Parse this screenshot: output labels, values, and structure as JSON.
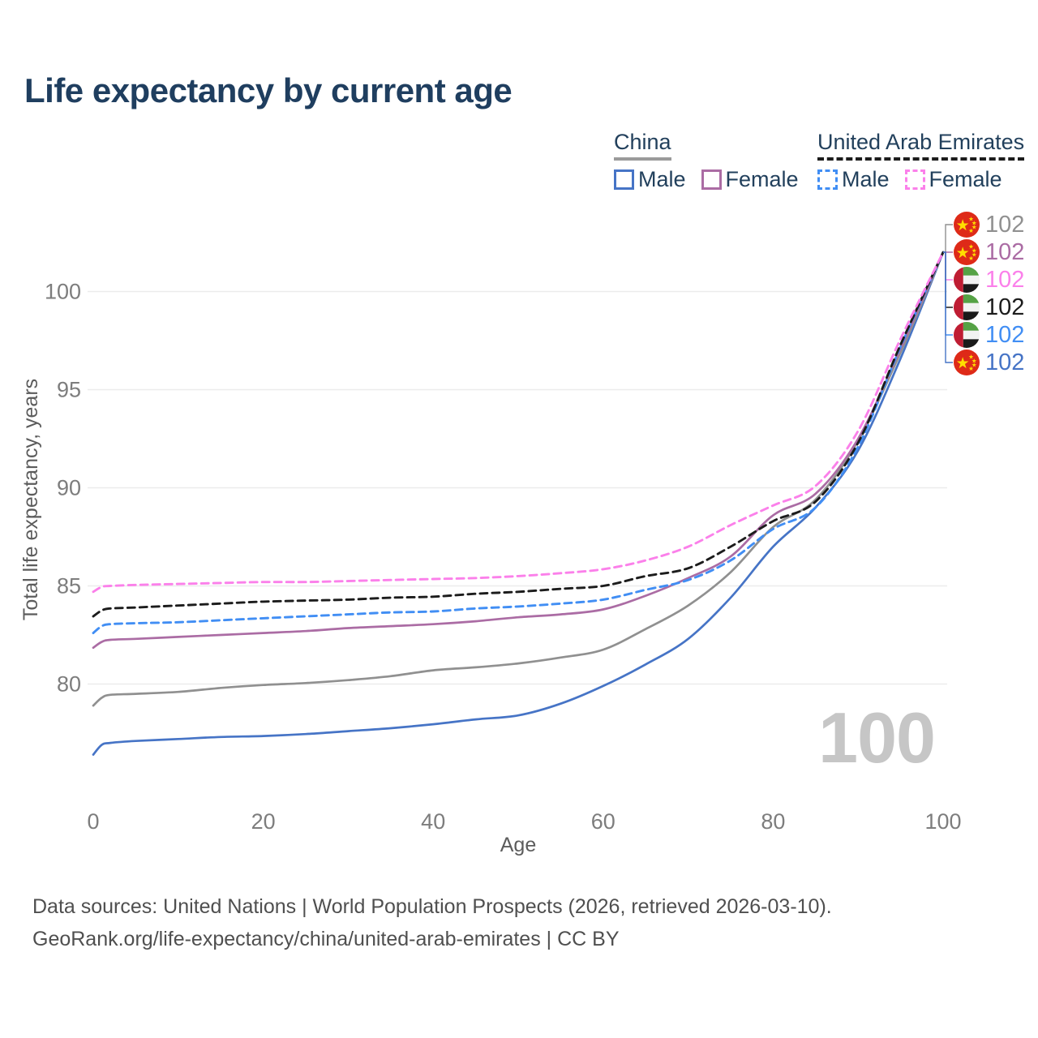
{
  "title": "Life expectancy by current age",
  "watermark": "100",
  "legend": {
    "position": "top-right",
    "groups": [
      {
        "country": "China",
        "style": "solid",
        "underline_color": "#9a9a9a",
        "items": [
          {
            "label": "Male",
            "color": "#4674c6"
          },
          {
            "label": "Female",
            "color": "#ab6ca4"
          }
        ]
      },
      {
        "country": "United Arab Emirates",
        "style": "dashed",
        "underline_color": "#1c1c1c",
        "items": [
          {
            "label": "Male",
            "color": "#418ef4"
          },
          {
            "label": "Female",
            "color": "#fb80ea"
          }
        ]
      }
    ]
  },
  "chart_data": {
    "type": "line",
    "title": "Life expectancy by current age",
    "xlabel": "Age",
    "ylabel": "Total life expectancy, years",
    "xticks": [
      0,
      20,
      40,
      60,
      80,
      100
    ],
    "yticks": [
      80,
      85,
      90,
      95,
      100
    ],
    "xlim": [
      0,
      100
    ],
    "ylim": [
      76,
      102.5
    ],
    "grid": "horizontal",
    "x": [
      0,
      1,
      2,
      5,
      10,
      15,
      20,
      25,
      30,
      35,
      40,
      45,
      50,
      55,
      60,
      65,
      70,
      75,
      80,
      85,
      90,
      95,
      100
    ],
    "series": [
      {
        "id": "china-male",
        "country": "China",
        "sex": "Male",
        "color": "#4674c6",
        "dash": false,
        "flag": "china",
        "end_label": "102",
        "label_row": 5,
        "values": [
          76.4,
          76.9,
          77.0,
          77.1,
          77.2,
          77.3,
          77.35,
          77.45,
          77.6,
          77.75,
          77.95,
          78.2,
          78.4,
          79.0,
          79.9,
          81.0,
          82.3,
          84.4,
          87.0,
          89.0,
          91.9,
          96.6,
          102
        ]
      },
      {
        "id": "china-all",
        "country": "China",
        "sex": "All",
        "color": "#909090",
        "dash": false,
        "flag": "china",
        "end_label": "102",
        "label_row": 0,
        "values": [
          78.9,
          79.3,
          79.45,
          79.5,
          79.6,
          79.8,
          79.95,
          80.05,
          80.2,
          80.4,
          80.7,
          80.85,
          81.05,
          81.35,
          81.75,
          82.8,
          84.0,
          85.7,
          88.0,
          89.4,
          92.4,
          96.9,
          102
        ]
      },
      {
        "id": "china-female",
        "country": "China",
        "sex": "Female",
        "color": "#ab6ca4",
        "dash": false,
        "flag": "china",
        "end_label": "102",
        "label_row": 1,
        "values": [
          81.85,
          82.15,
          82.25,
          82.3,
          82.4,
          82.5,
          82.6,
          82.7,
          82.85,
          82.95,
          83.05,
          83.2,
          83.4,
          83.55,
          83.8,
          84.5,
          85.4,
          86.5,
          88.6,
          89.7,
          92.5,
          97.1,
          102
        ]
      },
      {
        "id": "uae-male",
        "country": "United Arab Emirates",
        "sex": "Male",
        "color": "#418ef4",
        "dash": true,
        "flag": "uae",
        "end_label": "102",
        "label_row": 4,
        "values": [
          82.6,
          82.95,
          83.05,
          83.1,
          83.15,
          83.25,
          83.35,
          83.45,
          83.55,
          83.65,
          83.7,
          83.85,
          83.95,
          84.1,
          84.3,
          84.8,
          85.3,
          86.3,
          87.9,
          89.0,
          92.1,
          97.2,
          102
        ]
      },
      {
        "id": "uae-all",
        "country": "United Arab Emirates",
        "sex": "All",
        "color": "#1c1c1c",
        "dash": true,
        "flag": "uae",
        "end_label": "102",
        "label_row": 3,
        "values": [
          83.45,
          83.75,
          83.85,
          83.9,
          84.0,
          84.1,
          84.2,
          84.25,
          84.3,
          84.4,
          84.45,
          84.6,
          84.7,
          84.85,
          85.0,
          85.5,
          85.9,
          87.0,
          88.3,
          89.3,
          92.3,
          97.3,
          102
        ]
      },
      {
        "id": "uae-female",
        "country": "United Arab Emirates",
        "sex": "Female",
        "color": "#fb80ea",
        "dash": true,
        "flag": "uae",
        "end_label": "102",
        "label_row": 2,
        "values": [
          84.7,
          84.95,
          85.0,
          85.05,
          85.1,
          85.15,
          85.2,
          85.2,
          85.25,
          85.3,
          85.35,
          85.4,
          85.5,
          85.65,
          85.85,
          86.3,
          87.0,
          88.1,
          89.1,
          90.1,
          92.9,
          97.6,
          102
        ]
      }
    ]
  },
  "footer": {
    "line1": "Data sources: United Nations | World Population Prospects (2026, retrieved 2026-03-10).",
    "line2": "GeoRank.org/life-expectancy/china/united-arab-emirates | CC BY"
  }
}
